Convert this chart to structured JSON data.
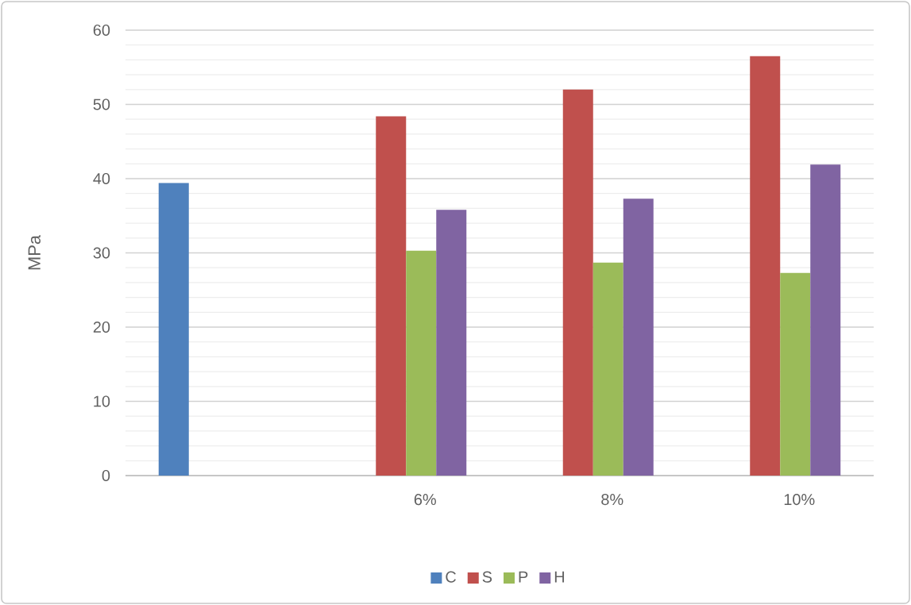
{
  "chart_data": {
    "type": "bar",
    "ylabel": "MPa",
    "categories": [
      null,
      "6%",
      "8%",
      "10%"
    ],
    "series": [
      {
        "name": "C",
        "color": "#4f81bd",
        "values": [
          39.4,
          null,
          null,
          null
        ]
      },
      {
        "name": "S",
        "color": "#c0504d",
        "values": [
          null,
          48.4,
          52.0,
          56.5
        ]
      },
      {
        "name": "P",
        "color": "#9bbb59",
        "values": [
          null,
          30.3,
          28.7,
          27.3
        ]
      },
      {
        "name": "H",
        "color": "#8064a2",
        "values": [
          null,
          35.8,
          37.3,
          41.9
        ]
      }
    ],
    "ylim": [
      0,
      60
    ],
    "yticks": [
      0,
      10,
      20,
      30,
      40,
      50,
      60
    ],
    "grid": "y",
    "legend": "bottom"
  }
}
